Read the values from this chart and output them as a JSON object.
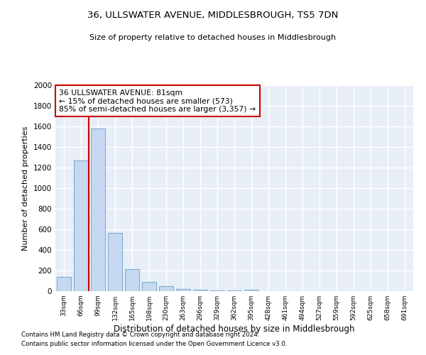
{
  "title": "36, ULLSWATER AVENUE, MIDDLESBROUGH, TS5 7DN",
  "subtitle": "Size of property relative to detached houses in Middlesbrough",
  "xlabel": "Distribution of detached houses by size in Middlesbrough",
  "ylabel": "Number of detached properties",
  "footnote1": "Contains HM Land Registry data © Crown copyright and database right 2024.",
  "footnote2": "Contains public sector information licensed under the Open Government Licence v3.0.",
  "categories": [
    "33sqm",
    "66sqm",
    "99sqm",
    "132sqm",
    "165sqm",
    "198sqm",
    "230sqm",
    "263sqm",
    "296sqm",
    "329sqm",
    "362sqm",
    "395sqm",
    "428sqm",
    "461sqm",
    "494sqm",
    "527sqm",
    "559sqm",
    "592sqm",
    "625sqm",
    "658sqm",
    "691sqm"
  ],
  "values": [
    140,
    1270,
    1580,
    565,
    215,
    90,
    45,
    20,
    15,
    8,
    5,
    15,
    2,
    1,
    1,
    1,
    0,
    0,
    0,
    0,
    0
  ],
  "bar_color": "#c6d9f0",
  "bar_edge_color": "#7bafd4",
  "bg_color": "#e8eef7",
  "grid_color": "#ffffff",
  "annotation_line1": "36 ULLSWATER AVENUE: 81sqm",
  "annotation_line2": "← 15% of detached houses are smaller (573)",
  "annotation_line3": "85% of semi-detached houses are larger (3,357) →",
  "annotation_box_color": "#ffffff",
  "annotation_border_color": "#cc0000",
  "ylim": [
    0,
    2000
  ],
  "yticks": [
    0,
    200,
    400,
    600,
    800,
    1000,
    1200,
    1400,
    1600,
    1800,
    2000
  ],
  "red_line_index": 1.45
}
